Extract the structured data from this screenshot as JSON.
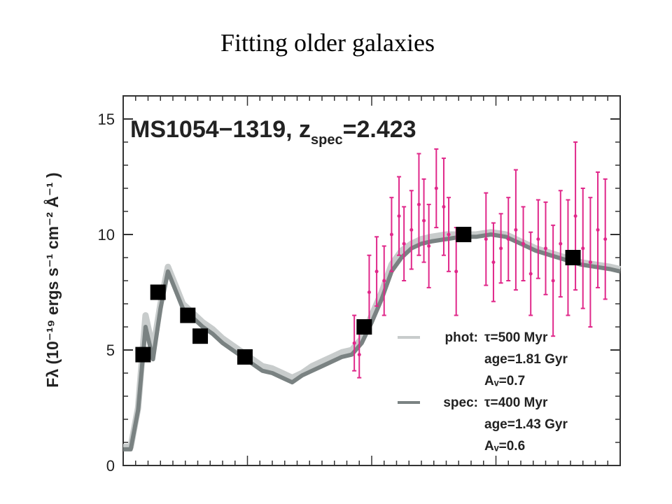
{
  "page": {
    "title": "Fitting older galaxies"
  },
  "chart_data": {
    "type": "line",
    "title": "MS1054−1319, z",
    "title_subscript": "spec",
    "title_tail": "=2.423",
    "xlabel": "",
    "ylabel": "Fλ (10⁻¹⁹ ergs s⁻¹ cm⁻² Å⁻¹ )",
    "xlim": [
      0,
      10
    ],
    "ylim": [
      0,
      16
    ],
    "yticks": [
      0,
      5,
      10,
      15
    ],
    "xticks": [],
    "grid": false,
    "legend_position": "bottom-right",
    "colors": {
      "phot_model": "#c8cccc",
      "spec_model": "#7a8282",
      "spectrum": "#e0288a",
      "photometry": "#000000"
    },
    "series": [
      {
        "name": "phot",
        "kind": "model",
        "x": [
          0.0,
          0.15,
          0.3,
          0.45,
          0.6,
          0.75,
          0.9,
          1.05,
          1.2,
          1.4,
          1.6,
          1.8,
          2.0,
          2.2,
          2.4,
          2.6,
          2.8,
          3.0,
          3.2,
          3.4,
          3.6,
          3.8,
          4.0,
          4.2,
          4.4,
          4.6,
          4.8,
          5.0,
          5.2,
          5.4,
          5.6,
          5.8,
          6.0,
          6.2,
          6.5,
          6.8,
          7.1,
          7.4,
          7.7,
          8.0,
          8.3,
          8.6,
          8.9,
          9.2,
          9.5,
          9.8,
          10.0
        ],
        "y": [
          0.8,
          0.8,
          2.5,
          6.5,
          5.0,
          7.0,
          8.6,
          7.8,
          7.0,
          6.6,
          6.2,
          5.9,
          5.5,
          5.2,
          4.9,
          4.6,
          4.3,
          4.2,
          4.0,
          3.8,
          4.0,
          4.3,
          4.5,
          4.7,
          4.9,
          5.0,
          5.5,
          6.5,
          7.5,
          8.7,
          9.3,
          9.6,
          9.8,
          9.9,
          10.0,
          10.0,
          10.0,
          10.1,
          10.0,
          9.7,
          9.4,
          9.2,
          9.0,
          8.8,
          8.7,
          8.6,
          8.5
        ]
      },
      {
        "name": "spec",
        "kind": "model",
        "x": [
          0.0,
          0.15,
          0.3,
          0.45,
          0.6,
          0.75,
          0.9,
          1.05,
          1.2,
          1.4,
          1.6,
          1.8,
          2.0,
          2.2,
          2.4,
          2.6,
          2.8,
          3.0,
          3.2,
          3.4,
          3.6,
          3.8,
          4.0,
          4.2,
          4.4,
          4.6,
          4.8,
          5.0,
          5.2,
          5.4,
          5.6,
          5.8,
          6.0,
          6.2,
          6.5,
          6.8,
          7.1,
          7.4,
          7.7,
          8.0,
          8.3,
          8.6,
          8.9,
          9.2,
          9.5,
          9.8,
          10.0
        ],
        "y": [
          0.7,
          0.7,
          2.4,
          6.0,
          4.6,
          6.8,
          8.4,
          7.6,
          6.8,
          6.4,
          6.0,
          5.7,
          5.3,
          5.0,
          4.7,
          4.4,
          4.1,
          4.0,
          3.8,
          3.6,
          3.9,
          4.1,
          4.3,
          4.5,
          4.7,
          4.8,
          5.3,
          6.2,
          7.2,
          8.4,
          9.0,
          9.4,
          9.6,
          9.7,
          9.8,
          9.9,
          9.9,
          10.0,
          9.9,
          9.6,
          9.3,
          9.1,
          8.9,
          8.7,
          8.6,
          8.5,
          8.4
        ]
      },
      {
        "name": "",
        "kind": "spectrum",
        "x": [
          4.65,
          4.75,
          4.95,
          5.1,
          5.25,
          5.4,
          5.55,
          5.65,
          5.8,
          5.95,
          6.05,
          6.15,
          6.3,
          6.45,
          6.55,
          6.7,
          7.3,
          7.45,
          7.6,
          7.75,
          7.9,
          8.05,
          8.2,
          8.35,
          8.5,
          8.65,
          8.8,
          8.95,
          9.1,
          9.25,
          9.4,
          9.55,
          9.7
        ],
        "y": [
          5.3,
          4.8,
          7.5,
          8.4,
          8.0,
          10.0,
          10.8,
          9.6,
          10.2,
          11.3,
          10.6,
          9.5,
          12.0,
          11.2,
          10.0,
          8.4,
          9.8,
          8.8,
          9.4,
          9.8,
          10.2,
          9.6,
          8.3,
          9.8,
          9.4,
          8.0,
          9.6,
          9.0,
          10.8,
          9.4,
          8.8,
          10.2,
          9.8
        ],
        "err": [
          1.2,
          1.0,
          1.6,
          1.5,
          1.5,
          1.6,
          1.7,
          1.6,
          1.7,
          2.2,
          1.8,
          1.8,
          1.7,
          2.1,
          1.6,
          1.9,
          2.0,
          1.7,
          1.5,
          1.8,
          2.6,
          1.6,
          1.8,
          1.7,
          2.0,
          2.4,
          2.3,
          2.5,
          3.2,
          2.6,
          2.8,
          2.5,
          2.6
        ]
      },
      {
        "name": "",
        "kind": "photometry",
        "x": [
          0.4,
          0.7,
          1.3,
          1.55,
          2.45,
          4.85,
          6.85,
          9.05
        ],
        "y": [
          4.8,
          7.5,
          6.5,
          5.6,
          4.7,
          6.0,
          10.0,
          9.0
        ]
      }
    ],
    "legend": [
      {
        "series": "phot",
        "label": "phot:",
        "lines": [
          "τ=500 Myr",
          "age=1.81 Gyr",
          "Aᵥ=0.7"
        ]
      },
      {
        "series": "spec",
        "label": "spec:",
        "lines": [
          "τ=400 Myr",
          "age=1.43 Gyr",
          "Aᵥ=0.6"
        ]
      }
    ]
  }
}
